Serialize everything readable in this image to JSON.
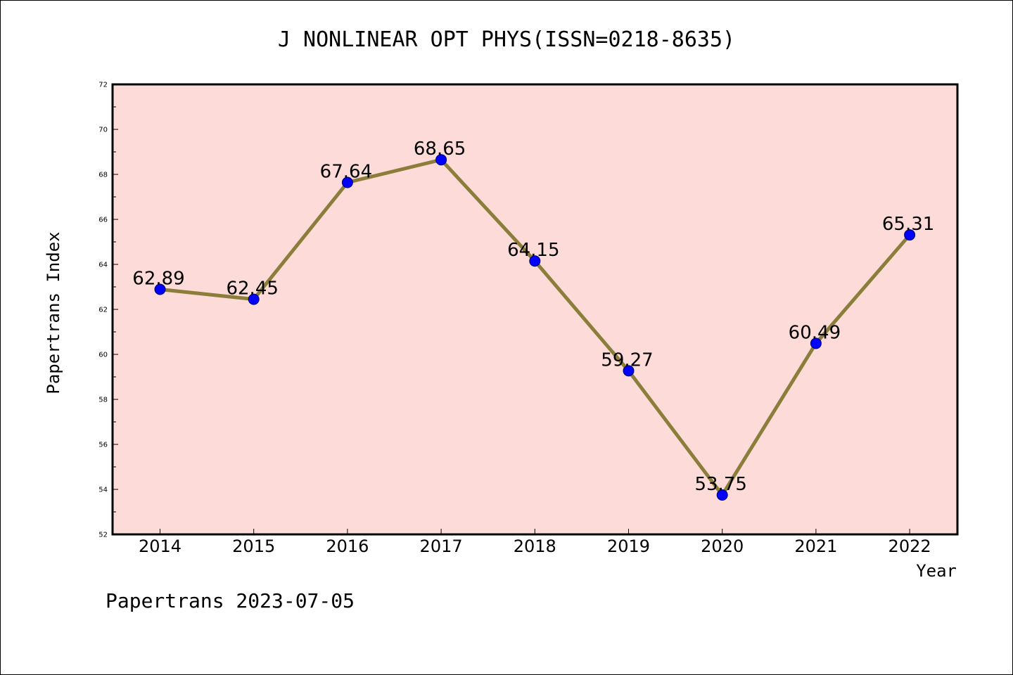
{
  "chart_data": {
    "type": "line",
    "title": "J NONLINEAR OPT PHYS(ISSN=0218-8635)",
    "xlabel": "Year",
    "ylabel": "Papertrans Index",
    "categories": [
      "2014",
      "2015",
      "2016",
      "2017",
      "2018",
      "2019",
      "2020",
      "2021",
      "2022"
    ],
    "values": [
      62.89,
      62.45,
      67.64,
      68.65,
      64.15,
      59.27,
      53.75,
      60.49,
      65.31
    ],
    "data_labels": [
      "62.89",
      "62.45",
      "67.64",
      "68.65",
      "64.15",
      "59.27",
      "53.75",
      "60.49",
      "65.31"
    ],
    "ylim": [
      52,
      72
    ],
    "yticks": [
      52,
      54,
      56,
      58,
      60,
      62,
      64,
      66,
      68,
      70,
      72
    ],
    "grid": false,
    "legend": "none",
    "colors": {
      "plot_background": "#fddbd8",
      "line": "#8b7d3a",
      "marker": "#0000ff"
    }
  },
  "footer": "Papertrans 2023-07-05"
}
